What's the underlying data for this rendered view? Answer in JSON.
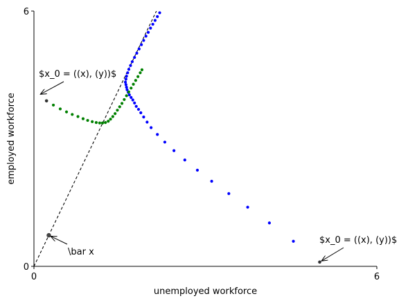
{
  "chart_data": {
    "type": "scatter",
    "xlabel": "unemployed workforce",
    "ylabel": "employed workforce",
    "xlim": [
      0,
      6
    ],
    "ylim": [
      0,
      6
    ],
    "xticks": [
      0,
      6
    ],
    "yticks": [
      0,
      6
    ],
    "steady_state": {
      "x": 0.26,
      "y": 0.73
    },
    "reference_line": {
      "x0": 0,
      "y0": 0,
      "slope": 2.8,
      "style": "dashed",
      "color": "#000000"
    },
    "colors": {
      "series_a": "#0000ff",
      "series_b": "#008000",
      "start": "#333333",
      "line": "#000000"
    },
    "series": [
      {
        "color": "#0000ff",
        "points": [
          [
            5.0,
            0.1
          ],
          [
            4.54,
            0.59
          ],
          [
            4.12,
            1.02
          ],
          [
            3.74,
            1.39
          ],
          [
            3.41,
            1.71
          ],
          [
            3.11,
            2.0
          ],
          [
            2.86,
            2.26
          ],
          [
            2.64,
            2.5
          ],
          [
            2.45,
            2.72
          ],
          [
            2.29,
            2.92
          ],
          [
            2.16,
            3.1
          ],
          [
            2.05,
            3.26
          ],
          [
            1.98,
            3.39
          ],
          [
            1.92,
            3.51
          ],
          [
            1.87,
            3.61
          ],
          [
            1.83,
            3.69
          ],
          [
            1.79,
            3.76
          ],
          [
            1.76,
            3.84
          ],
          [
            1.73,
            3.91
          ],
          [
            1.7,
            3.97
          ],
          [
            1.67,
            4.03
          ],
          [
            1.65,
            4.09
          ],
          [
            1.63,
            4.15
          ],
          [
            1.62,
            4.21
          ],
          [
            1.61,
            4.27
          ],
          [
            1.6,
            4.33
          ],
          [
            1.61,
            4.4
          ],
          [
            1.62,
            4.47
          ],
          [
            1.64,
            4.55
          ],
          [
            1.66,
            4.63
          ],
          [
            1.69,
            4.72
          ],
          [
            1.72,
            4.81
          ],
          [
            1.76,
            4.91
          ],
          [
            1.8,
            5.01
          ],
          [
            1.84,
            5.11
          ],
          [
            1.88,
            5.21
          ],
          [
            1.92,
            5.31
          ],
          [
            1.96,
            5.41
          ],
          [
            2.0,
            5.5
          ],
          [
            2.04,
            5.6
          ],
          [
            2.08,
            5.69
          ],
          [
            2.12,
            5.78
          ],
          [
            2.16,
            5.87
          ],
          [
            2.2,
            5.96
          ],
          [
            2.24,
            6.05
          ]
        ]
      },
      {
        "color": "#008000",
        "points": [
          [
            0.22,
            3.89
          ],
          [
            0.34,
            3.79
          ],
          [
            0.46,
            3.7
          ],
          [
            0.57,
            3.63
          ],
          [
            0.67,
            3.57
          ],
          [
            0.77,
            3.52
          ],
          [
            0.86,
            3.47
          ],
          [
            0.94,
            3.43
          ],
          [
            1.02,
            3.4
          ],
          [
            1.09,
            3.38
          ],
          [
            1.15,
            3.37
          ],
          [
            1.2,
            3.37
          ],
          [
            1.25,
            3.38
          ],
          [
            1.3,
            3.41
          ],
          [
            1.34,
            3.46
          ],
          [
            1.38,
            3.52
          ],
          [
            1.42,
            3.59
          ],
          [
            1.46,
            3.67
          ],
          [
            1.5,
            3.75
          ],
          [
            1.54,
            3.83
          ],
          [
            1.58,
            3.92
          ],
          [
            1.62,
            4.01
          ],
          [
            1.66,
            4.1
          ],
          [
            1.7,
            4.19
          ],
          [
            1.74,
            4.28
          ],
          [
            1.78,
            4.37
          ],
          [
            1.82,
            4.46
          ],
          [
            1.86,
            4.55
          ],
          [
            1.89,
            4.62
          ]
        ]
      }
    ],
    "annotations": [
      {
        "text": "$x_0 = ((x), (y))$",
        "x": 0.08,
        "y": 4.02,
        "text_x": 0.1,
        "text_y": 4.52
      },
      {
        "text": "$x_0 = ((x), (y))$",
        "x": 5.0,
        "y": 0.1,
        "text_x": 5.0,
        "text_y": 0.6
      },
      {
        "text": "\\bar x",
        "x": 0.26,
        "y": 0.73,
        "text_x": 0.6,
        "text_y": 0.35
      }
    ]
  }
}
